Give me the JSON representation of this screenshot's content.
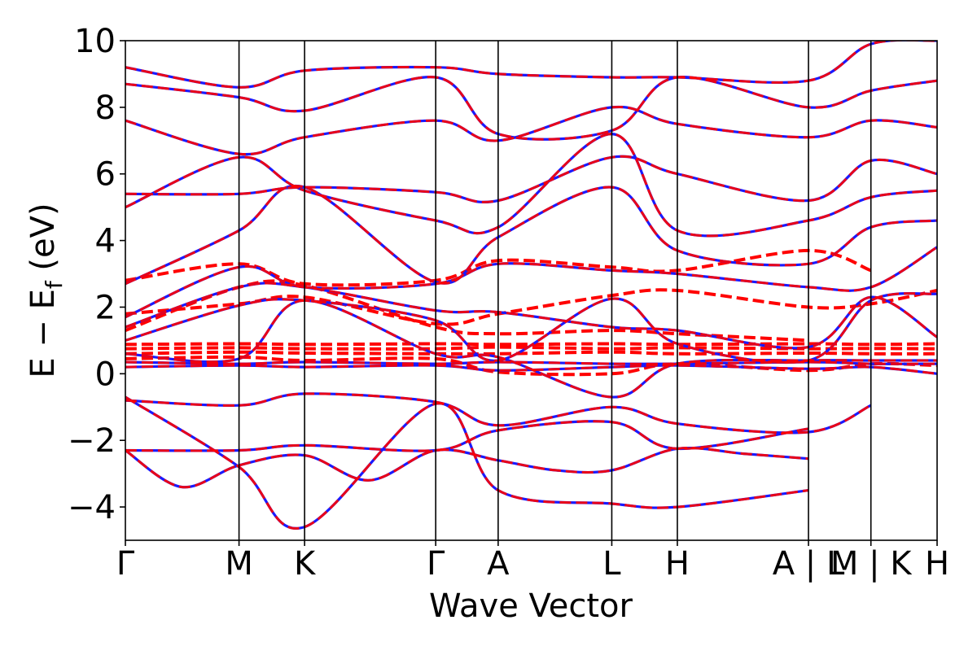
{
  "chart_data": {
    "type": "line",
    "title": "",
    "xlabel": "Wave Vector",
    "ylabel": "E − E",
    "ylabel_subscript": "f",
    "ylabel_unit": " (eV)",
    "ylim": [
      -5,
      10
    ],
    "yticks": [
      -4,
      -2,
      0,
      2,
      4,
      6,
      8,
      10
    ],
    "ytick_labels": [
      "−4",
      "−2",
      "0",
      "2",
      "4",
      "6",
      "8",
      "10"
    ],
    "xlim": [
      0,
      13.0
    ],
    "high_symmetry_points": [
      {
        "label": "Γ",
        "x": 0.0
      },
      {
        "label": "M",
        "x": 1.82
      },
      {
        "label": "K",
        "x": 2.87
      },
      {
        "label": "Γ",
        "x": 4.97
      },
      {
        "label": "A",
        "x": 5.97
      },
      {
        "label": "L",
        "x": 7.79
      },
      {
        "label": "H",
        "x": 8.84
      },
      {
        "label": "A | L",
        "x": 10.94
      },
      {
        "label": "M | K",
        "x": 11.94
      },
      {
        "label": "H",
        "x": 13.0
      }
    ],
    "grid": false,
    "colors": {
      "series_a": "#0000ff",
      "series_b": "#ff0000",
      "axes": "#000000"
    },
    "series": [
      {
        "style": "solid",
        "color": "#1a1aff",
        "bands": [
          {
            "x": [
              0,
              1.82,
              2.87,
              4.97,
              5.97,
              7.79,
              8.84,
              10.94,
              11.94,
              13.0
            ],
            "y": [
              -0.8,
              -0.95,
              -0.6,
              -0.85,
              -1.55,
              -1.0,
              -1.5,
              -1.75,
              -0.95,
              null
            ]
          },
          {
            "x": [
              0,
              1.82,
              2.87,
              4.97,
              5.97,
              7.79,
              8.84,
              10.94,
              11.94,
              13.0
            ],
            "y": [
              -2.3,
              -2.3,
              -2.15,
              -2.3,
              -1.7,
              -1.45,
              -2.25,
              -1.65,
              null,
              null
            ]
          },
          {
            "x": [
              0,
              0.9,
              1.82,
              2.87,
              3.9,
              4.97,
              5.97,
              6.9,
              7.79,
              8.84,
              9.9,
              10.94
            ],
            "y": [
              -2.3,
              -3.4,
              -2.75,
              -2.45,
              -3.2,
              -2.3,
              -2.6,
              -2.9,
              -2.9,
              -2.25,
              -2.4,
              -2.55
            ]
          },
          {
            "x": [
              0,
              1.82,
              2.87,
              4.97,
              5.97,
              7.79,
              8.84,
              10.94
            ],
            "y": [
              -0.7,
              -2.8,
              -4.6,
              -0.9,
              -3.5,
              -3.9,
              -4.0,
              -3.5
            ]
          },
          {
            "x": [
              0,
              1.82,
              2.87,
              4.97,
              5.97,
              7.79,
              8.84,
              10.94,
              11.94,
              13.0
            ],
            "y": [
              0.2,
              0.25,
              0.2,
              0.25,
              0.1,
              0.2,
              0.25,
              0.15,
              0.2,
              0.0
            ]
          },
          {
            "x": [
              0,
              1.82,
              2.87,
              4.97,
              5.97,
              7.79,
              8.84,
              10.94,
              11.94,
              13.0
            ],
            "y": [
              0.35,
              0.3,
              0.35,
              0.3,
              0.35,
              0.3,
              0.3,
              0.35,
              0.3,
              0.3
            ]
          },
          {
            "x": [
              0,
              1.82,
              2.87,
              4.97,
              5.97,
              7.79,
              8.84,
              10.94,
              11.94,
              13.0
            ],
            "y": [
              0.6,
              0.45,
              2.2,
              0.6,
              0.5,
              -0.7,
              0.3,
              0.4,
              0.4,
              0.4
            ]
          },
          {
            "x": [
              0,
              1.82,
              2.87,
              4.97,
              5.97,
              7.79,
              8.84,
              10.94,
              11.94,
              13.0
            ],
            "y": [
              1.0,
              2.05,
              2.2,
              1.6,
              0.4,
              2.25,
              0.9,
              0.4,
              2.2,
              2.4
            ]
          },
          {
            "x": [
              0,
              1.82,
              2.87,
              4.97,
              5.97,
              7.79,
              8.84,
              10.94,
              11.94,
              13.0
            ],
            "y": [
              1.4,
              2.6,
              2.6,
              1.9,
              1.85,
              1.4,
              1.3,
              0.8,
              2.3,
              1.1
            ]
          },
          {
            "x": [
              0,
              1.82,
              2.87,
              4.97,
              5.97,
              7.79,
              8.84,
              10.94,
              11.94,
              13.0
            ],
            "y": [
              1.7,
              3.2,
              2.6,
              2.7,
              3.3,
              3.1,
              3.0,
              2.6,
              2.6,
              3.8
            ]
          },
          {
            "x": [
              0,
              1.82,
              2.87,
              4.97,
              5.97,
              7.79,
              8.84,
              10.94,
              11.94,
              13.0
            ],
            "y": [
              2.7,
              4.3,
              5.6,
              2.75,
              4.1,
              5.6,
              3.7,
              3.3,
              4.4,
              4.6
            ]
          },
          {
            "x": [
              0,
              1.82,
              2.87,
              4.97,
              5.97,
              7.79,
              8.84,
              10.94,
              11.94,
              13.0
            ],
            "y": [
              5.0,
              6.5,
              5.5,
              4.6,
              4.4,
              7.2,
              4.3,
              4.6,
              5.3,
              5.5
            ]
          },
          {
            "x": [
              0,
              1.82,
              2.87,
              4.97,
              5.97,
              7.79,
              8.84,
              10.94,
              11.94,
              13.0
            ],
            "y": [
              5.4,
              5.4,
              5.6,
              5.45,
              5.2,
              6.5,
              6.0,
              5.2,
              6.4,
              6.0
            ]
          },
          {
            "x": [
              0,
              1.82,
              2.87,
              4.97,
              5.97,
              7.79,
              8.84,
              10.94,
              11.94,
              13.0
            ],
            "y": [
              7.6,
              6.6,
              7.1,
              7.6,
              7.0,
              8.0,
              7.5,
              7.1,
              7.6,
              7.4
            ]
          },
          {
            "x": [
              0,
              1.82,
              2.87,
              4.97,
              5.97,
              7.79,
              8.84,
              10.94,
              11.94,
              13.0
            ],
            "y": [
              8.7,
              8.3,
              7.9,
              8.9,
              7.2,
              7.3,
              8.9,
              8.0,
              8.5,
              8.8
            ]
          },
          {
            "x": [
              0,
              1.82,
              2.87,
              4.97,
              5.97,
              7.79,
              8.84,
              10.94,
              11.94,
              13.0
            ],
            "y": [
              9.2,
              8.6,
              9.1,
              9.2,
              9.0,
              8.9,
              8.9,
              8.8,
              9.9,
              10.0
            ]
          }
        ]
      },
      {
        "style": "dashed",
        "color": "#ff0000",
        "bands": [
          {
            "x": [
              0,
              1.82,
              2.87,
              4.97,
              5.97,
              7.79,
              8.84,
              10.94,
              11.94,
              13.0
            ],
            "y": [
              0.6,
              0.65,
              0.62,
              0.6,
              0.6,
              0.65,
              0.6,
              0.62,
              0.6,
              0.6
            ]
          },
          {
            "x": [
              0,
              1.82,
              2.87,
              4.97,
              5.97,
              7.79,
              8.84,
              10.94,
              11.94,
              13.0
            ],
            "y": [
              0.75,
              0.78,
              0.75,
              0.75,
              0.8,
              0.75,
              0.78,
              0.75,
              0.76,
              0.75
            ]
          },
          {
            "x": [
              0,
              1.82,
              2.87,
              4.97,
              5.97,
              7.79,
              8.84,
              10.94,
              11.94,
              13.0
            ],
            "y": [
              0.88,
              0.9,
              0.88,
              0.9,
              0.88,
              0.9,
              0.88,
              0.9,
              0.88,
              0.9
            ]
          },
          {
            "x": [
              0,
              1.82,
              2.87,
              4.97,
              5.97,
              7.79,
              8.84,
              10.94,
              11.94,
              13.0
            ],
            "y": [
              0.45,
              0.5,
              0.4,
              0.45,
              0.05,
              0.0,
              0.3,
              0.1,
              0.3,
              0.25
            ]
          },
          {
            "x": [
              0,
              1.82,
              2.87,
              4.97,
              5.97,
              7.79,
              8.84,
              10.94,
              11.94,
              13.0
            ],
            "y": [
              1.8,
              2.1,
              2.3,
              1.5,
              1.8,
              2.35,
              2.5,
              2.0,
              2.1,
              2.5
            ]
          },
          {
            "x": [
              0,
              1.82,
              2.87,
              4.97,
              5.97,
              7.79,
              8.84,
              10.94,
              11.94,
              13.0
            ],
            "y": [
              1.3,
              2.6,
              2.65,
              1.4,
              1.2,
              1.3,
              1.2,
              1.0,
              null,
              null
            ]
          },
          {
            "x": [
              0,
              1.82,
              2.87,
              4.97,
              5.97,
              7.79,
              8.84,
              10.94,
              11.94,
              13.0
            ],
            "y": [
              2.8,
              3.3,
              2.7,
              2.8,
              3.4,
              3.2,
              3.1,
              3.7,
              3.1,
              null
            ]
          }
        ]
      }
    ]
  }
}
